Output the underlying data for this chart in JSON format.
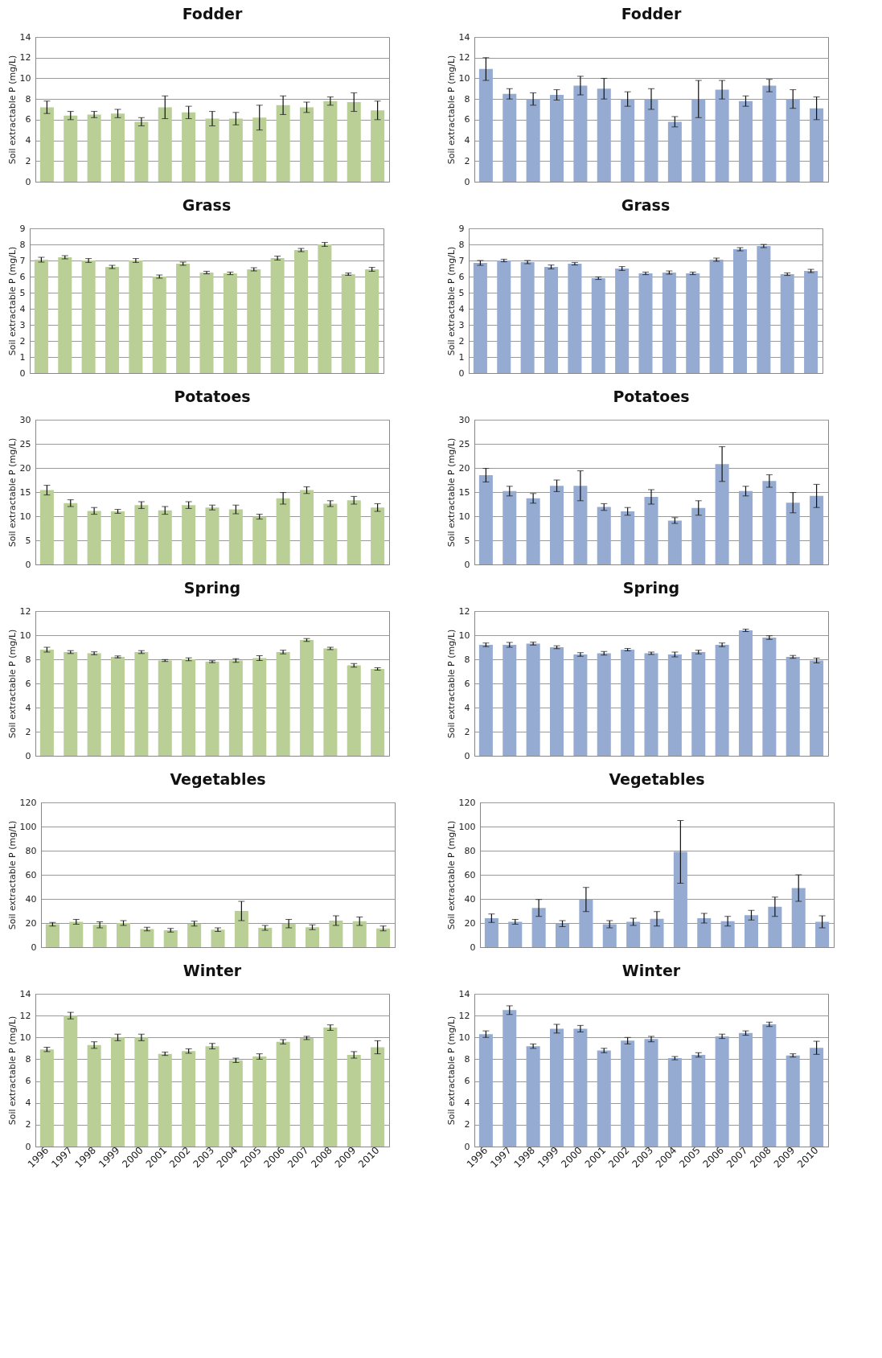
{
  "chart_data": [
    {
      "type": "bar",
      "title": "Fodder",
      "ylabel": "Soil extractable P (mg/L)",
      "categories": [
        "1996",
        "1997",
        "1998",
        "1999",
        "2000",
        "2001",
        "2002",
        "2003",
        "2004",
        "2005",
        "2006",
        "2007",
        "2008",
        "2009",
        "2010"
      ],
      "color": "#b9cf96",
      "values": [
        7.2,
        6.4,
        6.5,
        6.6,
        5.8,
        7.2,
        6.7,
        6.1,
        6.1,
        6.2,
        7.4,
        7.2,
        7.8,
        7.7,
        6.9
      ],
      "errors": [
        0.6,
        0.4,
        0.3,
        0.4,
        0.4,
        1.1,
        0.6,
        0.7,
        0.6,
        1.2,
        0.9,
        0.5,
        0.4,
        0.9,
        0.9
      ],
      "ylim": [
        0,
        14
      ],
      "yticks": [
        0,
        2,
        4,
        6,
        8,
        10,
        12,
        14
      ],
      "grid": "y",
      "tick_labels": "y"
    },
    {
      "type": "bar",
      "title": "Fodder",
      "ylabel": "Soil extractable P (mg/L)",
      "categories": [
        "1996",
        "1997",
        "1998",
        "1999",
        "2000",
        "2001",
        "2002",
        "2003",
        "2004",
        "2005",
        "2006",
        "2007",
        "2008",
        "2009",
        "2010"
      ],
      "color": "#95abd2",
      "values": [
        10.9,
        8.5,
        8.0,
        8.4,
        9.3,
        9.0,
        8.0,
        8.0,
        5.8,
        8.0,
        8.9,
        7.8,
        9.3,
        8.0,
        7.1
      ],
      "errors": [
        1.1,
        0.5,
        0.6,
        0.5,
        0.9,
        1.0,
        0.7,
        1.0,
        0.5,
        1.8,
        0.9,
        0.5,
        0.6,
        0.9,
        1.1
      ],
      "ylim": [
        0,
        14
      ],
      "yticks": [
        0,
        2,
        4,
        6,
        8,
        10,
        12,
        14
      ],
      "grid": "y",
      "tick_labels": "y"
    },
    {
      "type": "bar",
      "title": "Grass",
      "ylabel": "Soil extractable P (mg/L)",
      "categories": [
        "1996",
        "1997",
        "1998",
        "1999",
        "2000",
        "2001",
        "2002",
        "2003",
        "2004",
        "2005",
        "2006",
        "2007",
        "2008",
        "2009",
        "2010"
      ],
      "color": "#b9cf96",
      "values": [
        7.05,
        7.2,
        7.0,
        6.6,
        7.0,
        6.0,
        6.8,
        6.25,
        6.2,
        6.45,
        7.15,
        7.65,
        8.0,
        6.15,
        6.45
      ],
      "errors": [
        0.15,
        0.1,
        0.12,
        0.1,
        0.12,
        0.1,
        0.1,
        0.08,
        0.08,
        0.1,
        0.12,
        0.1,
        0.12,
        0.07,
        0.12
      ],
      "ylim": [
        0,
        9
      ],
      "yticks": [
        0,
        1,
        2,
        3,
        4,
        5,
        6,
        7,
        8,
        9
      ],
      "grid": "y",
      "tick_labels": "y"
    },
    {
      "type": "bar",
      "title": "Grass",
      "ylabel": "Soil extractable P (mg/L)",
      "categories": [
        "1996",
        "1997",
        "1998",
        "1999",
        "2000",
        "2001",
        "2002",
        "2003",
        "2004",
        "2005",
        "2006",
        "2007",
        "2008",
        "2009",
        "2010"
      ],
      "color": "#95abd2",
      "values": [
        6.85,
        7.0,
        6.9,
        6.6,
        6.8,
        5.9,
        6.5,
        6.2,
        6.25,
        6.2,
        7.05,
        7.7,
        7.9,
        6.15,
        6.35
      ],
      "errors": [
        0.15,
        0.08,
        0.1,
        0.12,
        0.08,
        0.08,
        0.12,
        0.08,
        0.1,
        0.08,
        0.1,
        0.1,
        0.1,
        0.08,
        0.1
      ],
      "ylim": [
        0,
        9
      ],
      "yticks": [
        0,
        1,
        2,
        3,
        4,
        5,
        6,
        7,
        8,
        9
      ],
      "grid": "y",
      "tick_labels": "y"
    },
    {
      "type": "bar",
      "title": "Potatoes",
      "ylabel": "Soil extractable P (mg/L)",
      "categories": [
        "1996",
        "1997",
        "1998",
        "1999",
        "2000",
        "2001",
        "2002",
        "2003",
        "2004",
        "2005",
        "2006",
        "2007",
        "2008",
        "2009",
        "2010"
      ],
      "color": "#b9cf96",
      "values": [
        15.4,
        12.7,
        11.1,
        11.0,
        12.3,
        11.2,
        12.3,
        11.8,
        11.4,
        9.9,
        13.7,
        15.4,
        12.6,
        13.3,
        11.8
      ],
      "errors": [
        1.0,
        0.7,
        0.7,
        0.4,
        0.7,
        0.8,
        0.7,
        0.5,
        0.9,
        0.5,
        1.2,
        0.7,
        0.6,
        0.8,
        0.8
      ],
      "ylim": [
        0,
        30
      ],
      "yticks": [
        0,
        5,
        10,
        15,
        20,
        25,
        30
      ],
      "grid": "y",
      "tick_labels": "y"
    },
    {
      "type": "bar",
      "title": "Potatoes",
      "ylabel": "Soil extractable P (mg/L)",
      "categories": [
        "1996",
        "1997",
        "1998",
        "1999",
        "2000",
        "2001",
        "2002",
        "2003",
        "2004",
        "2005",
        "2006",
        "2007",
        "2008",
        "2009",
        "2010"
      ],
      "color": "#95abd2",
      "values": [
        18.5,
        15.2,
        13.7,
        16.3,
        16.3,
        11.9,
        11.0,
        14.0,
        9.1,
        11.7,
        20.8,
        15.2,
        17.3,
        12.8,
        14.2
      ],
      "errors": [
        1.4,
        1.0,
        1.0,
        1.2,
        3.1,
        0.7,
        0.8,
        1.5,
        0.6,
        1.5,
        3.6,
        1.0,
        1.3,
        2.1,
        2.4
      ],
      "ylim": [
        0,
        30
      ],
      "yticks": [
        0,
        5,
        10,
        15,
        20,
        25,
        30
      ],
      "grid": "y",
      "tick_labels": "y"
    },
    {
      "type": "bar",
      "title": "Spring",
      "ylabel": "Soil extractable P (mg/L)",
      "categories": [
        "1996",
        "1997",
        "1998",
        "1999",
        "2000",
        "2001",
        "2002",
        "2003",
        "2004",
        "2005",
        "2006",
        "2007",
        "2008",
        "2009",
        "2010"
      ],
      "color": "#b9cf96",
      "values": [
        8.8,
        8.6,
        8.5,
        8.2,
        8.6,
        7.9,
        8.0,
        7.8,
        7.9,
        8.1,
        8.6,
        9.6,
        8.9,
        7.5,
        7.2
      ],
      "errors": [
        0.2,
        0.12,
        0.12,
        0.08,
        0.12,
        0.08,
        0.12,
        0.08,
        0.15,
        0.2,
        0.15,
        0.12,
        0.1,
        0.15,
        0.1
      ],
      "ylim": [
        0,
        12
      ],
      "yticks": [
        0,
        2,
        4,
        6,
        8,
        10,
        12
      ],
      "grid": "y",
      "tick_labels": "y"
    },
    {
      "type": "bar",
      "title": "Spring",
      "ylabel": "Soil extractable P (mg/L)",
      "categories": [
        "1996",
        "1997",
        "1998",
        "1999",
        "2000",
        "2001",
        "2002",
        "2003",
        "2004",
        "2005",
        "2006",
        "2007",
        "2008",
        "2009",
        "2010"
      ],
      "color": "#95abd2",
      "values": [
        9.2,
        9.2,
        9.3,
        9.0,
        8.4,
        8.5,
        8.8,
        8.5,
        8.4,
        8.6,
        9.2,
        10.4,
        9.8,
        8.2,
        7.9
      ],
      "errors": [
        0.15,
        0.2,
        0.12,
        0.12,
        0.15,
        0.15,
        0.1,
        0.1,
        0.2,
        0.15,
        0.15,
        0.1,
        0.15,
        0.12,
        0.2
      ],
      "ylim": [
        0,
        12
      ],
      "yticks": [
        0,
        2,
        4,
        6,
        8,
        10,
        12
      ],
      "grid": "y",
      "tick_labels": "y"
    },
    {
      "type": "bar",
      "title": "Vegetables",
      "ylabel": "Soil extractable P (mg/L)",
      "categories": [
        "1996",
        "1997",
        "1998",
        "1999",
        "2000",
        "2001",
        "2002",
        "2003",
        "2004",
        "2005",
        "2006",
        "2007",
        "2008",
        "2009",
        "2010"
      ],
      "color": "#b9cf96",
      "values": [
        19,
        21,
        18.5,
        20,
        15,
        14,
        19.5,
        14.5,
        30,
        16,
        19.5,
        16.5,
        22,
        21.5,
        15.5
      ],
      "errors": [
        1.5,
        2,
        2.5,
        2,
        1.5,
        1.5,
        2,
        1.5,
        8,
        2,
        3.5,
        2,
        4,
        3.5,
        2
      ],
      "ylim": [
        0,
        120
      ],
      "yticks": [
        0,
        20,
        40,
        60,
        80,
        100,
        120
      ],
      "grid": "y",
      "tick_labels": "y"
    },
    {
      "type": "bar",
      "title": "Vegetables",
      "ylabel": "Soil extractable P (mg/L)",
      "categories": [
        "1996",
        "1997",
        "1998",
        "1999",
        "2000",
        "2001",
        "2002",
        "2003",
        "2004",
        "2005",
        "2006",
        "2007",
        "2008",
        "2009",
        "2010"
      ],
      "color": "#95abd2",
      "values": [
        24,
        21,
        32.5,
        19.5,
        39.5,
        19,
        21,
        23.5,
        79,
        24,
        21.5,
        26.5,
        33.5,
        49,
        21
      ],
      "errors": [
        3.5,
        2,
        7,
        2.5,
        10,
        3,
        3,
        6,
        26,
        4,
        4,
        4,
        8,
        11,
        5
      ],
      "ylim": [
        0,
        120
      ],
      "yticks": [
        0,
        20,
        40,
        60,
        80,
        100,
        120
      ],
      "grid": "y",
      "tick_labels": "y"
    },
    {
      "type": "bar",
      "title": "Winter",
      "ylabel": "Soil extractable P (mg/L)",
      "categories": [
        "1996",
        "1997",
        "1998",
        "1999",
        "2000",
        "2001",
        "2002",
        "2003",
        "2004",
        "2005",
        "2006",
        "2007",
        "2008",
        "2009",
        "2010"
      ],
      "color": "#b9cf96",
      "values": [
        8.9,
        12.0,
        9.3,
        10.0,
        10.0,
        8.5,
        8.75,
        9.2,
        7.9,
        8.25,
        9.6,
        9.95,
        10.9,
        8.4,
        9.1
      ],
      "errors": [
        0.2,
        0.3,
        0.3,
        0.3,
        0.3,
        0.15,
        0.2,
        0.25,
        0.2,
        0.25,
        0.2,
        0.15,
        0.25,
        0.3,
        0.6
      ],
      "ylim": [
        0,
        14
      ],
      "yticks": [
        0,
        2,
        4,
        6,
        8,
        10,
        12,
        14
      ],
      "grid": "y"
    },
    {
      "type": "bar",
      "title": "Winter",
      "ylabel": "Soil extractable P (mg/L)",
      "categories": [
        "1996",
        "1997",
        "1998",
        "1999",
        "2000",
        "2001",
        "2002",
        "2003",
        "2004",
        "2005",
        "2006",
        "2007",
        "2008",
        "2009",
        "2010"
      ],
      "color": "#95abd2",
      "values": [
        10.3,
        12.5,
        9.2,
        10.8,
        10.8,
        8.8,
        9.7,
        9.85,
        8.1,
        8.4,
        10.1,
        10.4,
        11.2,
        8.35,
        9.05
      ],
      "errors": [
        0.3,
        0.4,
        0.2,
        0.4,
        0.3,
        0.2,
        0.3,
        0.25,
        0.15,
        0.2,
        0.2,
        0.2,
        0.2,
        0.15,
        0.6
      ],
      "ylim": [
        0,
        14
      ],
      "yticks": [
        0,
        2,
        4,
        6,
        8,
        10,
        12,
        14
      ],
      "grid": "y"
    }
  ]
}
